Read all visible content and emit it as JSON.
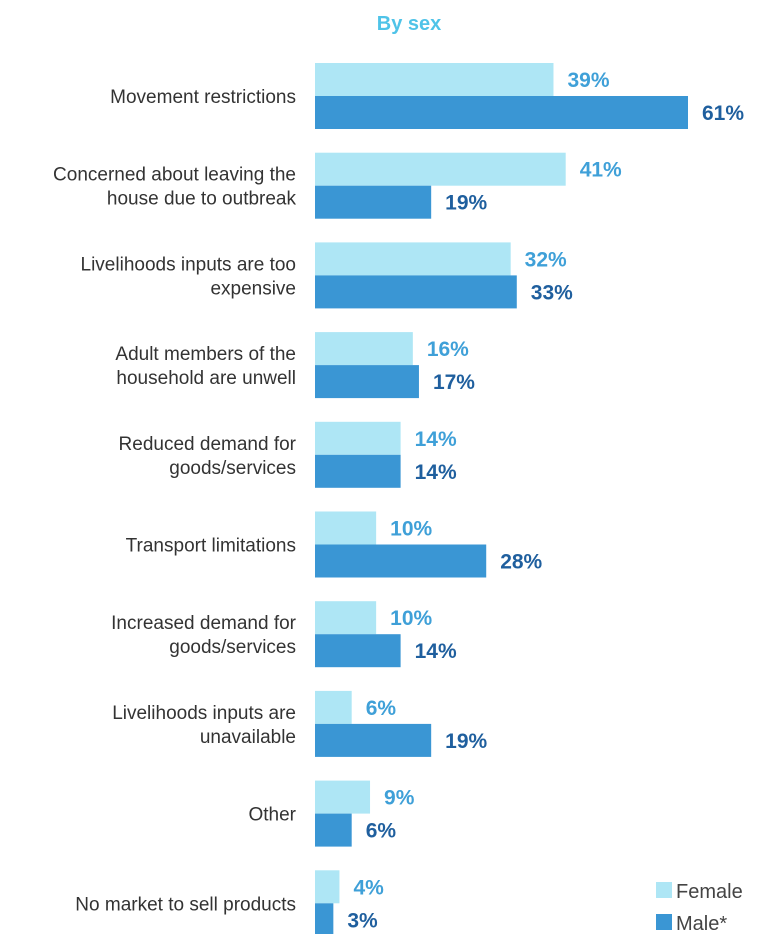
{
  "chart_data": {
    "type": "bar",
    "orientation": "horizontal",
    "title": "By sex",
    "categories": [
      [
        "Movement restrictions"
      ],
      [
        "Concerned about leaving the",
        "house due to outbreak"
      ],
      [
        "Livelihoods inputs are too",
        "expensive"
      ],
      [
        "Adult members of the",
        "household are unwell"
      ],
      [
        "Reduced demand for",
        "goods/services"
      ],
      [
        "Transport limitations"
      ],
      [
        "Increased demand for",
        "goods/services"
      ],
      [
        "Livelihoods inputs are",
        "unavailable"
      ],
      [
        "Other"
      ],
      [
        "No market to sell products"
      ]
    ],
    "series": [
      {
        "name": "Female",
        "color": "#aee6f5",
        "label_color": "#3fa0d8",
        "values": [
          39,
          41,
          32,
          16,
          14,
          10,
          10,
          6,
          9,
          4
        ]
      },
      {
        "name": "Male*",
        "color": "#3a96d4",
        "label_color": "#1f5f9e",
        "values": [
          61,
          19,
          33,
          17,
          14,
          28,
          14,
          19,
          6,
          3
        ]
      }
    ],
    "value_suffix": "%",
    "xlim": [
      0,
      61
    ],
    "grid": false,
    "legend_position": "bottom-right"
  }
}
